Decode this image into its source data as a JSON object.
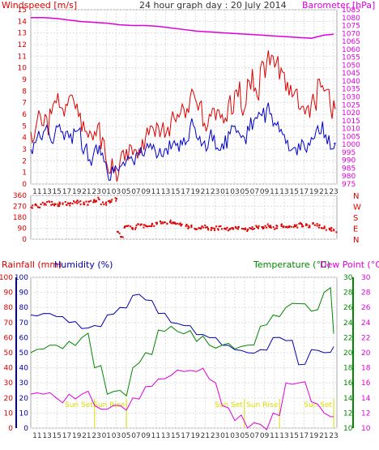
{
  "chart_data": [
    {
      "panel": "top",
      "type": "line",
      "title": "24 hour graph day : 20 July 2014",
      "ylabel_left": "Windspeed [m/s]",
      "ylabel_right": "Barometer [hPa]",
      "ylim_left": [
        0,
        15
      ],
      "yticks_left": [
        "0",
        "1",
        "2",
        "3",
        "4",
        "5",
        "6",
        "7",
        "8",
        "9",
        "10",
        "11",
        "12",
        "13",
        "14",
        "15"
      ],
      "ylim_right": [
        975,
        1085
      ],
      "yticks_right": [
        "975",
        "980",
        "985",
        "990",
        "995",
        "1000",
        "1005",
        "1010",
        "1015",
        "1020",
        "1025",
        "1030",
        "1035",
        "1040",
        "1045",
        "1050",
        "1055",
        "1060",
        "1065",
        "1070",
        "1075",
        "1080",
        "1085"
      ],
      "x_ticks": [
        "11",
        "13",
        "15",
        "17",
        "19",
        "21",
        "23",
        "01",
        "03",
        "05",
        "07",
        "09",
        "11",
        "13",
        "15",
        "17",
        "19",
        "21",
        "23",
        "01",
        "03",
        "05",
        "07",
        "09",
        "11",
        "13",
        "15",
        "17",
        "19",
        "21",
        "23"
      ],
      "x_tick_labels_shown": [
        "11",
        "13",
        "15",
        "17",
        "19",
        "21",
        "23",
        "01",
        "03",
        "07",
        "09",
        "11",
        "13",
        "15",
        "17",
        "19",
        "21",
        "23",
        "01",
        "03",
        "05",
        "07",
        "09",
        "11",
        "13",
        "15",
        "17",
        "19",
        "21",
        "23"
      ],
      "grid": true,
      "colors": {
        "gust": "#dd0000",
        "wind": "#0000cc",
        "barometer": "#dd00dd"
      },
      "series": [
        {
          "name": "Barometer",
          "color": "#dd00dd",
          "x": [
            0,
            2,
            4,
            6,
            8,
            10,
            12,
            14,
            16,
            18,
            20,
            22,
            24,
            26,
            28,
            30,
            32,
            34,
            36,
            38,
            40,
            42,
            44,
            46,
            47.5
          ],
          "values": [
            1080,
            1080,
            1079.5,
            1078.5,
            1077.5,
            1077,
            1076.5,
            1075.5,
            1075,
            1075,
            1074.5,
            1073.5,
            1072.5,
            1071.5,
            1071,
            1070.5,
            1070,
            1069.5,
            1069,
            1068.5,
            1068,
            1067.5,
            1067,
            1069,
            1069.5
          ]
        },
        {
          "name": "Gust",
          "color": "#dd0000",
          "x": [
            0,
            1,
            2,
            3,
            4,
            5,
            6,
            7,
            8,
            9,
            10,
            11,
            12,
            13,
            14,
            15,
            16,
            17,
            18,
            19,
            20,
            21,
            22,
            23,
            24,
            25,
            26,
            27,
            28,
            29,
            30,
            31,
            32,
            33,
            34,
            35,
            36,
            37,
            38,
            39,
            40,
            41,
            42,
            43,
            44,
            45,
            46,
            47,
            47.5
          ],
          "values": [
            4.5,
            5.5,
            5,
            6.5,
            7,
            6.5,
            7.5,
            6.5,
            4.5,
            4,
            4.5,
            3,
            1.5,
            1,
            2,
            3,
            2.5,
            3,
            4,
            5,
            5,
            4,
            5.5,
            6,
            6.5,
            7.5,
            7,
            5,
            6,
            5.5,
            6,
            7,
            8,
            6.5,
            9,
            8,
            10,
            10.5,
            11,
            9,
            8,
            7.5,
            6.5,
            6,
            7,
            9,
            8,
            6.5,
            7
          ]
        },
        {
          "name": "Wind",
          "color": "#0000cc",
          "x": [
            0,
            1,
            2,
            3,
            4,
            5,
            6,
            7,
            8,
            9,
            10,
            11,
            12,
            13,
            14,
            15,
            16,
            17,
            18,
            19,
            20,
            21,
            22,
            23,
            24,
            25,
            26,
            27,
            28,
            29,
            30,
            31,
            32,
            33,
            34,
            35,
            36,
            37,
            38,
            39,
            40,
            41,
            42,
            43,
            44,
            45,
            46,
            47,
            47.5
          ],
          "values": [
            3,
            4,
            4.5,
            4,
            5,
            4.5,
            4,
            4.5,
            3,
            2,
            3,
            2.5,
            1,
            1,
            1.5,
            2,
            2,
            2.5,
            3,
            3,
            2.5,
            3,
            3,
            3.5,
            4,
            5,
            4,
            3.5,
            4,
            3,
            3.5,
            4.5,
            5,
            4,
            5,
            5.5,
            6,
            6.5,
            5,
            4.5,
            3.5,
            3,
            3.5,
            3,
            4,
            5,
            4,
            3,
            3.5
          ]
        }
      ]
    },
    {
      "panel": "middle",
      "type": "scatter",
      "ylabel_right": [
        "N",
        "W",
        "S",
        "E",
        "N"
      ],
      "ylim": [
        0,
        360
      ],
      "yticks": [
        "0",
        "90",
        "180",
        "270",
        "360"
      ],
      "color": "#dd0000",
      "points_x": [
        0,
        0.5,
        1,
        1.5,
        2,
        2.5,
        3,
        3.5,
        4,
        4.5,
        5,
        5.5,
        6,
        6.5,
        7,
        7.5,
        8,
        8.5,
        9,
        9.5,
        10,
        10.5,
        11,
        11.5,
        12,
        12.5,
        13,
        13.5,
        14,
        14.5,
        15,
        15.5,
        16,
        16.5,
        17,
        17.5,
        18,
        18.5,
        19,
        19.5,
        20,
        20.5,
        21,
        21.5,
        22,
        22.5,
        23,
        23.5,
        24,
        24.5,
        25,
        25.5,
        26,
        26.5,
        27,
        27.5,
        28,
        28.5,
        29,
        29.5,
        30,
        30.5,
        31,
        31.5,
        32,
        32.5,
        33,
        33.5,
        34,
        34.5,
        35,
        35.5,
        36,
        36.5,
        37,
        37.5,
        38,
        38.5,
        39,
        39.5,
        40,
        40.5,
        41,
        41.5,
        42,
        42.5,
        43,
        43.5,
        44,
        44.5,
        45,
        45.5,
        46,
        46.5,
        47,
        47.5
      ],
      "points_y": [
        270,
        280,
        275,
        290,
        285,
        300,
        295,
        290,
        280,
        295,
        300,
        290,
        285,
        300,
        310,
        300,
        290,
        295,
        300,
        310,
        320,
        330,
        300,
        290,
        310,
        320,
        330,
        50,
        30,
        100,
        110,
        90,
        95,
        120,
        130,
        110,
        100,
        115,
        120,
        130,
        140,
        125,
        135,
        145,
        140,
        130,
        120,
        115,
        110,
        95,
        100,
        90,
        85,
        95,
        100,
        90,
        85,
        80,
        90,
        95,
        100,
        85,
        90,
        95,
        100,
        90,
        85,
        80,
        90,
        95,
        100,
        95,
        90,
        105,
        110,
        100,
        95,
        100,
        110,
        95,
        90,
        100,
        110,
        105,
        120,
        115,
        110,
        100,
        120,
        115,
        105,
        95,
        90,
        85,
        80,
        70
      ]
    },
    {
      "panel": "bottom",
      "type": "line",
      "ylabel_left_1": "Rainfall (mm)",
      "ylabel_left_2": "Humidity (%)",
      "ylabel_right_1": "Temperature (°C)",
      "ylabel_right_2": "Dew Point (°C)",
      "ylim_rain": [
        0,
        100
      ],
      "yticks_rain": [
        "0",
        "10",
        "20",
        "30",
        "40",
        "50",
        "60",
        "70",
        "80",
        "90",
        "100"
      ],
      "ylim_hum": [
        0,
        100
      ],
      "yticks_hum": [
        "0",
        "10",
        "20",
        "30",
        "40",
        "50",
        "60",
        "70",
        "80",
        "90",
        "100"
      ],
      "ylim_temp": [
        10,
        30
      ],
      "yticks_temp": [
        "10",
        "12",
        "14",
        "16",
        "18",
        "20",
        "22",
        "24",
        "26",
        "28",
        "30"
      ],
      "annotations": [
        {
          "label": "Sun Set",
          "x": 10
        },
        {
          "label": "Sun Rise",
          "x": 15
        },
        {
          "label": "Sun Set",
          "x": 33.5
        },
        {
          "label": "Sun Rise",
          "x": 39
        },
        {
          "label": "Sun Set",
          "x": 47.5
        }
      ],
      "series": [
        {
          "name": "Humidity",
          "color": "#0000aa",
          "x": [
            0,
            2,
            4,
            6,
            8,
            10,
            12,
            14,
            16,
            18,
            20,
            22,
            24,
            26,
            28,
            30,
            32,
            34,
            36,
            38,
            40,
            42,
            44,
            46,
            47.5
          ],
          "values": [
            75,
            76,
            74,
            70,
            66,
            68,
            75,
            80,
            88,
            85,
            76,
            70,
            68,
            62,
            60,
            55,
            52,
            50,
            52,
            60,
            58,
            42,
            52,
            50,
            54
          ]
        },
        {
          "name": "Temperature",
          "color": "#008800",
          "x": [
            0,
            2,
            4,
            6,
            8,
            10,
            12,
            14,
            16,
            18,
            20,
            22,
            24,
            26,
            28,
            30,
            32,
            34,
            36,
            38,
            40,
            42,
            44,
            46,
            47.5
          ],
          "values": [
            20,
            20.5,
            21,
            21.5,
            22,
            18,
            14.5,
            15,
            18,
            20,
            23,
            23.5,
            22.5,
            21.5,
            21,
            21,
            20.5,
            21,
            23.5,
            25,
            26,
            26.5,
            25.5,
            28,
            22.5
          ]
        },
        {
          "name": "Dew Point",
          "color": "#dd00dd",
          "x": [
            0,
            2,
            4,
            6,
            8,
            10,
            12,
            14,
            16,
            18,
            20,
            22,
            24,
            26,
            28,
            30,
            32,
            34,
            36,
            38,
            40,
            42,
            44,
            46,
            47.5
          ],
          "values": [
            14.5,
            14.5,
            14,
            14.5,
            14.5,
            13,
            12.5,
            13,
            14,
            15.5,
            16.5,
            17,
            17.5,
            17.5,
            16.5,
            13,
            11,
            10,
            10.5,
            12,
            16,
            16,
            13.5,
            12,
            11.5
          ]
        }
      ]
    }
  ]
}
